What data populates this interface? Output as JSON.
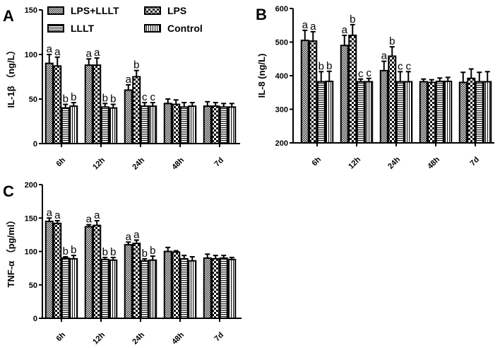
{
  "chart_data": [
    {
      "type": "bar",
      "panel": "A",
      "ylabel": "IL-1β （ng/L）",
      "ylim": [
        0,
        150
      ],
      "yticks": [
        0,
        50,
        100,
        150
      ],
      "categories": [
        "6h",
        "12h",
        "24h",
        "48h",
        "7d"
      ],
      "legend": {
        "placement": "top",
        "entries": [
          "LPS+LLLT",
          "LPS",
          "LLLT",
          "Control"
        ]
      },
      "series": [
        {
          "name": "LPS+LLLT",
          "values": [
            90,
            88,
            60,
            45,
            42
          ],
          "errors": [
            10,
            7,
            6,
            5,
            5
          ],
          "letters": [
            "a",
            "a",
            "a",
            "",
            ""
          ]
        },
        {
          "name": "LPS",
          "values": [
            87,
            88,
            75,
            44,
            42
          ],
          "errors": [
            10,
            8,
            7,
            5,
            4
          ],
          "letters": [
            "a",
            "a",
            "b",
            "",
            ""
          ]
        },
        {
          "name": "LLLT",
          "values": [
            40,
            41,
            42,
            41,
            41
          ],
          "errors": [
            4,
            4,
            4,
            5,
            4
          ],
          "letters": [
            "b",
            "b",
            "c",
            "",
            ""
          ]
        },
        {
          "name": "Control",
          "values": [
            42,
            40,
            42,
            42,
            41
          ],
          "errors": [
            4,
            4,
            4,
            4,
            4
          ],
          "letters": [
            "b",
            "b",
            "c",
            "",
            ""
          ]
        }
      ]
    },
    {
      "type": "bar",
      "panel": "B",
      "ylabel": "IL-8 (ng/L)",
      "ylim": [
        200,
        600
      ],
      "yticks": [
        200,
        300,
        400,
        500,
        600
      ],
      "categories": [
        "6h",
        "12h",
        "24h",
        "48h",
        "7d"
      ],
      "series": [
        {
          "name": "LPS+LLLT",
          "values": [
            505,
            490,
            415,
            382,
            380
          ],
          "errors": [
            30,
            30,
            28,
            8,
            30
          ],
          "letters": [
            "a",
            "a",
            "a",
            "",
            ""
          ]
        },
        {
          "name": "LPS",
          "values": [
            503,
            520,
            458,
            380,
            392
          ],
          "errors": [
            28,
            32,
            28,
            8,
            28
          ],
          "letters": [
            "a",
            "b",
            "b",
            "",
            ""
          ]
        },
        {
          "name": "LLLT",
          "values": [
            382,
            382,
            382,
            383,
            382
          ],
          "errors": [
            30,
            8,
            30,
            10,
            28
          ],
          "letters": [
            "b",
            "c",
            "c",
            "",
            ""
          ]
        },
        {
          "name": "Control",
          "values": [
            383,
            382,
            382,
            383,
            382
          ],
          "errors": [
            30,
            10,
            30,
            12,
            30
          ],
          "letters": [
            "b",
            "c",
            "c",
            "",
            ""
          ]
        }
      ]
    },
    {
      "type": "bar",
      "panel": "C",
      "ylabel": "TNF-α （pg/ml）",
      "ylim": [
        0,
        200
      ],
      "yticks": [
        0,
        50,
        100,
        150,
        200
      ],
      "categories": [
        "6h",
        "12h",
        "24h",
        "48h",
        "7d"
      ],
      "series": [
        {
          "name": "LPS+LLLT",
          "values": [
            145,
            137,
            110,
            100,
            90
          ],
          "errors": [
            5,
            3,
            4,
            6,
            6
          ],
          "letters": [
            "a",
            "a",
            "a",
            "",
            ""
          ]
        },
        {
          "name": "LPS",
          "values": [
            142,
            139,
            112,
            99,
            89
          ],
          "errors": [
            4,
            7,
            5,
            2,
            5
          ],
          "letters": [
            "a",
            "a",
            "a",
            "",
            ""
          ]
        },
        {
          "name": "LLLT",
          "values": [
            90,
            88,
            86,
            89,
            90
          ],
          "errors": [
            2,
            3,
            3,
            5,
            4
          ],
          "letters": [
            "b",
            "b",
            "b",
            "",
            ""
          ]
        },
        {
          "name": "Control",
          "values": [
            89,
            87,
            87,
            86,
            88
          ],
          "errors": [
            5,
            4,
            6,
            6,
            3
          ],
          "letters": [
            "b",
            "b",
            "b",
            "",
            ""
          ]
        }
      ]
    }
  ]
}
